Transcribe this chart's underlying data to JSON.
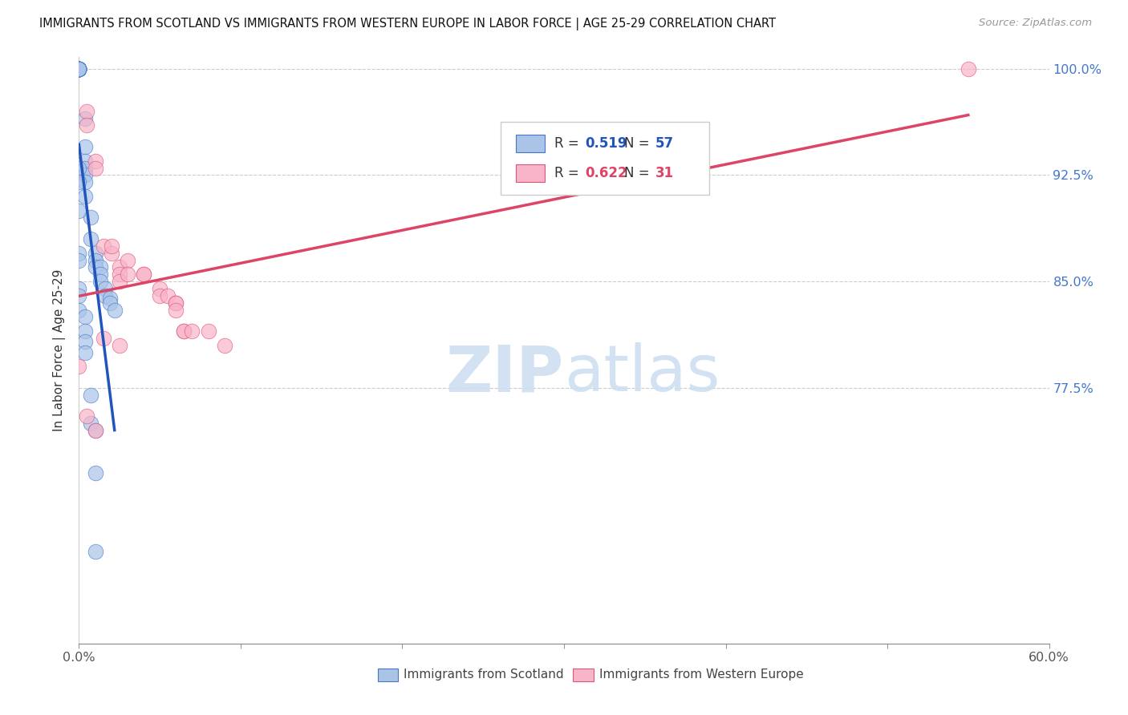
{
  "title": "IMMIGRANTS FROM SCOTLAND VS IMMIGRANTS FROM WESTERN EUROPE IN LABOR FORCE | AGE 25-29 CORRELATION CHART",
  "source": "Source: ZipAtlas.com",
  "ylabel": "In Labor Force | Age 25-29",
  "xlim": [
    0.0,
    0.6
  ],
  "ylim": [
    0.595,
    1.008
  ],
  "legend_R_blue": "0.519",
  "legend_N_blue": "57",
  "legend_R_pink": "0.622",
  "legend_N_pink": "31",
  "blue_fill": "#aac4e8",
  "blue_edge": "#4477cc",
  "pink_fill": "#f8b4c8",
  "pink_edge": "#dd5577",
  "blue_trendline": "#2255bb",
  "pink_trendline": "#dd4466",
  "watermark_color": "#ccddf0",
  "grid_color": "#cccccc",
  "right_label_color": "#4477cc",
  "scotland_x": [
    0.0,
    0.0,
    0.0,
    0.0,
    0.0,
    0.0,
    0.0,
    0.0,
    0.0,
    0.0,
    0.0,
    0.0,
    0.0,
    0.0,
    0.0,
    0.0,
    0.0,
    0.0,
    0.0,
    0.0,
    0.004,
    0.004,
    0.004,
    0.004,
    0.004,
    0.004,
    0.004,
    0.007,
    0.007,
    0.01,
    0.01,
    0.01,
    0.013,
    0.013,
    0.013,
    0.016,
    0.016,
    0.019,
    0.019,
    0.022,
    0.0,
    0.0,
    0.0,
    0.0,
    0.0,
    0.0,
    0.0,
    0.0,
    0.004,
    0.004,
    0.004,
    0.004,
    0.007,
    0.007,
    0.01,
    0.01,
    0.01
  ],
  "scotland_y": [
    1.0,
    1.0,
    1.0,
    1.0,
    1.0,
    1.0,
    1.0,
    1.0,
    1.0,
    1.0,
    1.0,
    1.0,
    1.0,
    1.0,
    1.0,
    1.0,
    1.0,
    1.0,
    1.0,
    1.0,
    0.965,
    0.945,
    0.935,
    0.93,
    0.925,
    0.92,
    0.91,
    0.895,
    0.88,
    0.87,
    0.865,
    0.86,
    0.86,
    0.855,
    0.85,
    0.845,
    0.84,
    0.838,
    0.835,
    0.83,
    0.93,
    0.92,
    0.9,
    0.87,
    0.865,
    0.845,
    0.84,
    0.83,
    0.825,
    0.815,
    0.808,
    0.8,
    0.77,
    0.75,
    0.745,
    0.715,
    0.66
  ],
  "western_x": [
    0.005,
    0.005,
    0.01,
    0.01,
    0.015,
    0.02,
    0.02,
    0.025,
    0.025,
    0.025,
    0.03,
    0.03,
    0.04,
    0.04,
    0.05,
    0.05,
    0.055,
    0.06,
    0.06,
    0.06,
    0.065,
    0.065,
    0.07,
    0.08,
    0.09,
    0.0,
    0.005,
    0.01,
    0.015,
    0.025,
    0.55
  ],
  "western_y": [
    0.97,
    0.96,
    0.935,
    0.93,
    0.875,
    0.87,
    0.875,
    0.86,
    0.855,
    0.85,
    0.865,
    0.855,
    0.855,
    0.855,
    0.845,
    0.84,
    0.84,
    0.835,
    0.835,
    0.83,
    0.815,
    0.815,
    0.815,
    0.815,
    0.805,
    0.79,
    0.755,
    0.745,
    0.81,
    0.805,
    1.0
  ],
  "blue_trend_x0": 0.0,
  "blue_trend_x1": 0.022,
  "pink_trend_x0": 0.0,
  "pink_trend_x1": 0.55
}
